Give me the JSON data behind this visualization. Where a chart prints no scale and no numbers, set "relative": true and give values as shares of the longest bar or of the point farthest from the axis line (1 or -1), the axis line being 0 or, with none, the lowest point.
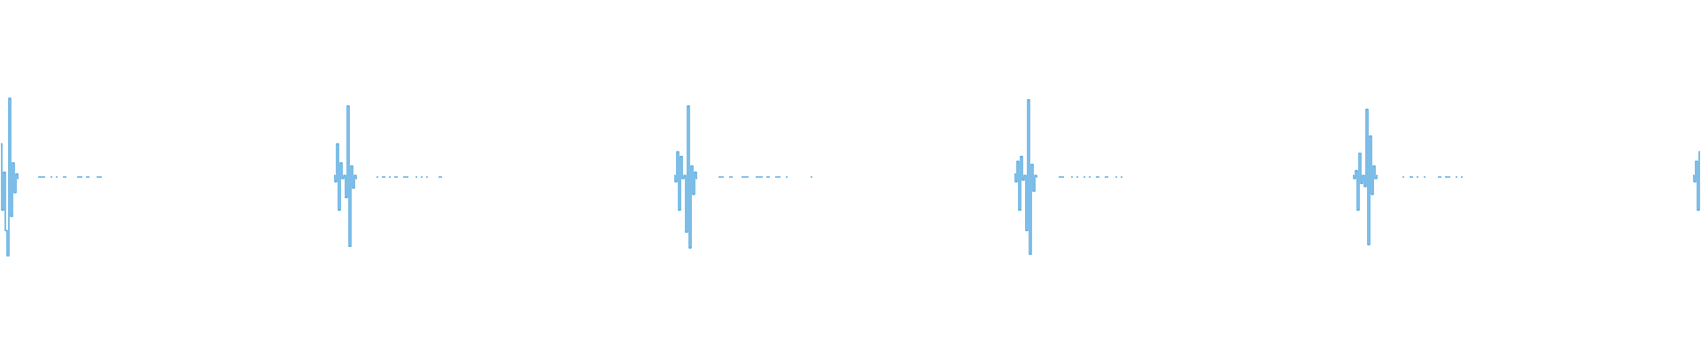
{
  "chart_data": {
    "type": "step",
    "relative": true,
    "color": "#5dade2",
    "categories": [
      null,
      null,
      null,
      null,
      null,
      null,
      null,
      null,
      null,
      null,
      null,
      null,
      null,
      null,
      null,
      null,
      null,
      null,
      null,
      null,
      null,
      null,
      null,
      null,
      null,
      null,
      null,
      null,
      null,
      null,
      null,
      null,
      null,
      null,
      null,
      null,
      null,
      null,
      null,
      null,
      null,
      null,
      null,
      null,
      null,
      null,
      null,
      null,
      null,
      null,
      null,
      null,
      null,
      null,
      null,
      null,
      null,
      null,
      null,
      null,
      null,
      null,
      null,
      null,
      null,
      null,
      null,
      null,
      null,
      null,
      null,
      null,
      null,
      null,
      null,
      null,
      null,
      null,
      null,
      null,
      null,
      null,
      null,
      null,
      null,
      null,
      null,
      null,
      null,
      null,
      null,
      null,
      null,
      null,
      null,
      null,
      null,
      null,
      null,
      null,
      null,
      null,
      null,
      null,
      null,
      null,
      null,
      null,
      null,
      null,
      null,
      null,
      null,
      null,
      null,
      null,
      null,
      null,
      null,
      null,
      null,
      null,
      null,
      null,
      null,
      null,
      null,
      null,
      null,
      null,
      null,
      null,
      null,
      null,
      null,
      null,
      null,
      null,
      null,
      null,
      null,
      null,
      null,
      null,
      null,
      null,
      null,
      null,
      null,
      null,
      null,
      null,
      null,
      null,
      null,
      null,
      null,
      null,
      null,
      null,
      null,
      null,
      null,
      null,
      null,
      null,
      null,
      null,
      null,
      null,
      null,
      null,
      null,
      null,
      null,
      null,
      null,
      null,
      null,
      null,
      null,
      null,
      null,
      null,
      null,
      null,
      null,
      null,
      null,
      null,
      null,
      null,
      null,
      null,
      null,
      null,
      null,
      null,
      null,
      null,
      null,
      null,
      null,
      null,
      null,
      null,
      null,
      null,
      null,
      null,
      null,
      null,
      null,
      null,
      null,
      null,
      null,
      null,
      null,
      null,
      null,
      null,
      null,
      null,
      null,
      null,
      null,
      null,
      null,
      null,
      null,
      null,
      null,
      null,
      null,
      null,
      null,
      null,
      null,
      null,
      null,
      null,
      null,
      null,
      null,
      null,
      null,
      null,
      null,
      null,
      null,
      null,
      null,
      null,
      null,
      null,
      null,
      null,
      null,
      null,
      null,
      null,
      null,
      null,
      null,
      null,
      null,
      null,
      null,
      null,
      null,
      null,
      null,
      null,
      null,
      null,
      null,
      null,
      null,
      null,
      null,
      null,
      null,
      null,
      null,
      null,
      null,
      null,
      null,
      null,
      null,
      null,
      null,
      null,
      null,
      null,
      null,
      null,
      null,
      null,
      null,
      null,
      null,
      null,
      null,
      null,
      null,
      null,
      null,
      null,
      null,
      null,
      null,
      null,
      null,
      null,
      null,
      null,
      null,
      null,
      null,
      null,
      null,
      null,
      null,
      null,
      null,
      null,
      null,
      null,
      null,
      null,
      null,
      null,
      null,
      null,
      null,
      null,
      null,
      null,
      null,
      null,
      null,
      null,
      null,
      null,
      null,
      null,
      null,
      null,
      null,
      null,
      null,
      null,
      null,
      null,
      null,
      null,
      null,
      null,
      null,
      null,
      null,
      null,
      null,
      null,
      null,
      null,
      null,
      null,
      null,
      null,
      null,
      null,
      null,
      null,
      null,
      null,
      null,
      null,
      null,
      null,
      null,
      null,
      null,
      null,
      null,
      null,
      null,
      null,
      null,
      null,
      null,
      null,
      null,
      null,
      null,
      null,
      null,
      null,
      null,
      null,
      null,
      null,
      null,
      null,
      null,
      null,
      null,
      null,
      null,
      null,
      null,
      null,
      null,
      null,
      null,
      null,
      null,
      null,
      null,
      null,
      null,
      null,
      null,
      null,
      null,
      null,
      null,
      null,
      null,
      null,
      null,
      null,
      null,
      null,
      null,
      null,
      null,
      null,
      null,
      null,
      null,
      null,
      null,
      null,
      null,
      null,
      null,
      null,
      null,
      null,
      null,
      null,
      null,
      null,
      null,
      null,
      null,
      null,
      null,
      null,
      null,
      null,
      null,
      null,
      null,
      null,
      null,
      null,
      null,
      null,
      null,
      null,
      null,
      null,
      null,
      null,
      null,
      null,
      null,
      null,
      null,
      null,
      null,
      null,
      null,
      null,
      null,
      null,
      null,
      null,
      null,
      null,
      null,
      null,
      null,
      null,
      null,
      null,
      null,
      null,
      null,
      null,
      null,
      null,
      null,
      null,
      null,
      null,
      null,
      null,
      null,
      null,
      null,
      null,
      null,
      null,
      null,
      null,
      null,
      null,
      null,
      null,
      null,
      null,
      null,
      null,
      null,
      null,
      null,
      null,
      null,
      null,
      null,
      null,
      null,
      null,
      null,
      null,
      null,
      null,
      null,
      null,
      null,
      null,
      null,
      null,
      null,
      null,
      null,
      null,
      null,
      null,
      null,
      null,
      null,
      null,
      null,
      null,
      null,
      null,
      null,
      null,
      null,
      null,
      null,
      null,
      null,
      null,
      null,
      null,
      null,
      null,
      null,
      null,
      null,
      null,
      null,
      null,
      null,
      null,
      null,
      null,
      null,
      null,
      null,
      null,
      null,
      null,
      null,
      null,
      null,
      null,
      null,
      null,
      null,
      null,
      null,
      null,
      null,
      null,
      null,
      null,
      null,
      null,
      null,
      null,
      null,
      null,
      null,
      null,
      null,
      null,
      null,
      null,
      null,
      null,
      null,
      null,
      null,
      null,
      null,
      null,
      null,
      null,
      null,
      null,
      null,
      null,
      null,
      null,
      null,
      null,
      null,
      null,
      null,
      null,
      null,
      null,
      null,
      null,
      null,
      null,
      null,
      null,
      null,
      null,
      null,
      null,
      null,
      null,
      null,
      null,
      null,
      null,
      null,
      null,
      null,
      null,
      null,
      null,
      null,
      null,
      null,
      null,
      null,
      null,
      null,
      null,
      null,
      null,
      null,
      null,
      null,
      null,
      null,
      null,
      null,
      null,
      null,
      null,
      null,
      null,
      null,
      null,
      null,
      null,
      null,
      null,
      null,
      null,
      null,
      null,
      null,
      null,
      null,
      null,
      null,
      null,
      null,
      null,
      null,
      null,
      null,
      null,
      null,
      null,
      null,
      null,
      null,
      null,
      null,
      null,
      null,
      null,
      null,
      null,
      null,
      null,
      null,
      null,
      null,
      null,
      null,
      null,
      null,
      null,
      null,
      null,
      null,
      null,
      null,
      null,
      null,
      null,
      null,
      null,
      null,
      null,
      null,
      null,
      null,
      null,
      null,
      null,
      null,
      null,
      null,
      null,
      null,
      null,
      null,
      null,
      null,
      null,
      null,
      null,
      null,
      null,
      null,
      null,
      null,
      null,
      null,
      null,
      null,
      null,
      null,
      null,
      null,
      null,
      null,
      null,
      null,
      null,
      null,
      null,
      null,
      null,
      null,
      null,
      null,
      null,
      null,
      null,
      null,
      null,
      null,
      null,
      null,
      null,
      null,
      null,
      null,
      null,
      null,
      null,
      null,
      null,
      null,
      null,
      null,
      null,
      null,
      null,
      null,
      null,
      null,
      null,
      null,
      null,
      null,
      null,
      null,
      null,
      null,
      null,
      null,
      null,
      null,
      null,
      null,
      null,
      null,
      null,
      null,
      null,
      null,
      null,
      null,
      null,
      null,
      null,
      null,
      null,
      null,
      null,
      null,
      null,
      null,
      null,
      null,
      null,
      null,
      null,
      null,
      null,
      null,
      null,
      null,
      null,
      null,
      null,
      null,
      null,
      null,
      null,
      null,
      null,
      null,
      null,
      null,
      null,
      null,
      null,
      null,
      null,
      null,
      null,
      null,
      null,
      null,
      null,
      null,
      null,
      null,
      null,
      null,
      null,
      null,
      null,
      null,
      null,
      null,
      null,
      null,
      null,
      null,
      null,
      null,
      null,
      null,
      null,
      null,
      null,
      null,
      null,
      null,
      null,
      null,
      null,
      null,
      null,
      null,
      null,
      null,
      null,
      null,
      null,
      null,
      null,
      null,
      null,
      null,
      null,
      null,
      null,
      null,
      null,
      null,
      null,
      null,
      null,
      null,
      null,
      null,
      null,
      null,
      null,
      null,
      null,
      null,
      null,
      null,
      null,
      null,
      null,
      null,
      null,
      null,
      null,
      null,
      null,
      null,
      null,
      null,
      null,
      null,
      null,
      null,
      null,
      null,
      null,
      null,
      null,
      null,
      null,
      null,
      null
    ],
    "values": [
      0.71,
      0.29,
      0.53,
      0.16,
      0,
      1,
      0.25,
      0.59,
      0.4,
      0.52,
      0.49,
      null,
      null,
      null,
      null,
      null,
      null,
      null,
      null,
      null,
      null,
      0.5,
      0.5,
      0.5,
      0.5,
      0.5,
      null,
      null,
      0.5,
      0.5,
      null,
      0.5,
      0.5,
      null,
      null,
      0.5,
      0.5,
      0.5,
      null,
      null,
      null,
      null,
      null,
      0.5,
      0.5,
      0.5,
      0.5,
      null,
      0.5,
      0.5,
      0.5,
      null,
      null,
      null,
      0.5,
      0.5,
      0.5,
      0.5,
      null,
      null,
      null,
      null,
      null,
      null,
      null,
      null,
      null,
      null,
      null,
      null,
      null,
      null,
      null,
      null,
      null,
      null,
      null,
      null,
      null,
      null,
      null,
      null,
      null,
      null,
      null,
      null,
      null,
      null,
      null,
      null,
      null,
      null,
      null,
      null,
      null,
      null,
      null,
      null,
      null,
      null,
      null,
      null,
      null,
      null,
      null,
      null,
      null,
      null,
      null,
      null,
      null,
      null,
      null,
      null,
      null,
      null,
      null,
      null,
      null,
      null,
      null,
      null,
      null,
      null,
      null,
      null,
      null,
      null,
      null,
      null,
      null,
      null,
      null,
      null,
      null,
      null,
      null,
      null,
      null,
      null,
      null,
      null,
      null,
      null,
      null,
      null,
      null,
      null,
      null,
      null,
      null,
      null,
      null,
      null,
      null,
      null,
      null,
      null,
      null,
      null,
      null,
      null,
      null,
      null,
      null,
      null,
      null,
      null,
      null,
      null,
      null,
      null,
      null,
      null,
      null,
      null,
      null,
      null,
      null,
      null,
      null,
      null,
      null,
      null,
      null,
      null,
      null,
      null,
      0.51,
      0.47,
      0.71,
      0.29,
      0.59,
      0.49,
      0.51,
      0.37,
      0.95,
      0.06,
      0.57,
      0.43,
      0.51,
      0.49,
      null,
      null,
      null,
      null,
      null,
      null,
      null,
      null,
      null,
      null,
      0.5,
      0.5,
      null,
      0.5,
      0.5,
      0.5,
      null,
      0.5,
      0.5,
      null,
      0.5,
      0.5,
      0.5,
      null,
      null,
      0.5,
      0.5,
      0.5,
      0.5,
      null,
      null,
      null,
      0.5,
      0.5,
      null,
      0.5,
      0.5,
      null,
      0.5,
      0.5,
      null,
      null,
      null,
      null,
      null,
      0.5,
      0.5,
      0.5,
      null,
      null,
      null,
      null,
      null,
      null,
      null,
      null,
      null,
      null,
      null,
      null,
      null,
      null,
      null,
      null,
      null,
      null,
      null,
      null,
      null,
      null,
      null,
      null,
      null,
      null,
      null,
      null,
      null,
      null,
      null,
      null,
      null,
      null,
      null,
      null,
      null,
      null,
      null,
      null,
      null,
      null,
      null,
      null,
      null,
      null,
      null,
      null,
      null,
      null,
      null,
      null,
      null,
      null,
      null,
      null,
      null,
      null,
      null,
      null,
      null,
      null,
      null,
      null,
      null,
      null,
      null,
      null,
      null,
      null,
      null,
      null,
      null,
      null,
      null,
      null,
      null,
      null,
      null,
      null,
      null,
      null,
      null,
      null,
      null,
      null,
      null,
      null,
      null,
      null,
      null,
      null,
      null,
      null,
      null,
      null,
      null,
      null,
      null,
      null,
      null,
      null,
      null,
      null,
      null,
      null,
      null,
      null,
      null,
      null,
      null,
      null,
      null,
      null,
      null,
      null,
      null,
      null,
      null,
      null,
      null,
      null,
      null,
      null,
      null,
      null,
      null,
      null,
      null,
      null,
      0.51,
      0.47,
      0.66,
      0.29,
      0.63,
      0.49,
      0.51,
      0.15,
      0.95,
      0.05,
      0.57,
      0.39,
      0.53,
      0.49,
      null,
      null,
      null,
      null,
      null,
      null,
      null,
      null,
      null,
      null,
      null,
      0.5,
      0.5,
      0.5,
      0.5,
      null,
      null,
      0.5,
      0.5,
      0.5,
      null,
      null,
      null,
      null,
      0.5,
      0.5,
      0.5,
      0.5,
      0.5,
      null,
      null,
      null,
      0.5,
      0.5,
      0.5,
      0.5,
      0.5,
      null,
      0.5,
      0.5,
      0.5,
      null,
      null,
      0.5,
      0.5,
      0.5,
      0.5,
      null,
      null,
      0.5,
      0.5,
      null,
      null,
      null,
      null,
      null,
      null,
      null,
      null,
      null,
      null,
      null,
      null,
      0.5,
      0.5,
      null,
      null,
      null,
      null,
      null,
      null,
      null,
      null,
      null,
      null,
      null,
      null,
      null,
      null,
      null,
      null,
      null,
      null,
      null,
      null,
      null,
      null,
      null,
      null,
      null,
      null,
      null,
      null,
      null,
      null,
      null,
      null,
      null,
      null,
      null,
      null,
      null,
      null,
      null,
      null,
      null,
      null,
      null,
      null,
      null,
      null,
      null,
      null,
      null,
      null,
      null,
      null,
      null,
      null,
      null,
      null,
      null,
      null,
      null,
      null,
      null,
      null,
      null,
      null,
      null,
      null,
      null,
      null,
      null,
      null,
      null,
      null,
      null,
      null,
      null,
      null,
      null,
      null,
      null,
      null,
      null,
      null,
      null,
      null,
      null,
      null,
      null,
      null,
      null,
      null,
      null,
      null,
      null,
      null,
      null,
      null,
      null,
      null,
      null,
      null,
      null,
      null,
      null,
      null,
      null,
      null,
      null,
      null,
      null,
      null,
      null,
      null,
      null,
      0.52,
      0.47,
      0.6,
      0.29,
      0.63,
      0.48,
      0.51,
      0.16,
      0.99,
      0.01,
      0.58,
      0.41,
      0.51,
      0.5,
      null,
      null,
      null,
      null,
      null,
      null,
      null,
      null,
      null,
      null,
      null,
      0.5,
      0.5,
      0.5,
      0.5,
      null,
      null,
      null,
      0.5,
      0.5,
      null,
      0.5,
      0.5,
      null,
      null,
      0.5,
      0.5,
      null,
      0.5,
      0.5,
      null,
      null,
      0.5,
      0.5,
      0.5,
      null,
      null,
      0.5,
      0.5,
      0.5,
      null,
      null,
      null,
      0.5,
      0.5,
      null,
      0.5,
      0.5,
      null,
      null,
      null,
      null,
      null,
      null,
      null,
      null,
      null,
      null,
      null,
      null,
      null,
      null,
      null,
      null,
      null,
      null,
      null,
      null,
      null,
      null,
      null,
      null,
      null,
      null,
      null,
      null,
      null,
      null,
      null,
      null,
      null,
      null,
      null,
      null,
      null,
      null,
      null,
      null,
      null,
      null,
      null,
      null,
      null,
      null,
      null,
      null,
      null,
      null,
      null,
      null,
      null,
      null,
      null,
      null,
      null,
      null,
      null,
      null,
      null,
      null,
      null,
      null,
      null,
      null,
      null,
      null,
      null,
      null,
      null,
      null,
      null,
      null,
      null,
      null,
      null,
      null,
      null,
      null,
      null,
      null,
      null,
      null,
      null,
      null,
      null,
      null,
      null,
      null,
      null,
      null,
      null,
      null,
      null,
      null,
      null,
      null,
      null,
      null,
      null,
      null,
      null,
      null,
      null,
      null,
      null,
      null,
      null,
      null,
      null,
      null,
      null,
      null,
      null,
      null,
      null,
      null,
      null,
      null,
      null,
      null,
      null,
      null,
      null,
      null,
      null,
      null,
      null,
      0.51,
      0.49,
      0.54,
      0.29,
      0.65,
      0.46,
      0.51,
      0.44,
      0.93,
      0.07,
      0.76,
      0.39,
      0.57,
      0.49,
      0.51,
      null,
      null,
      null,
      null,
      null,
      null,
      null,
      null,
      null,
      null,
      null,
      null,
      null,
      0.5,
      0.5,
      null,
      null,
      0.5,
      0.5,
      0.5,
      null,
      0.5,
      0.5,
      null,
      null,
      0.5,
      0.5,
      null,
      null,
      null,
      null,
      null,
      null,
      0.5,
      0.5,
      0.5,
      null,
      0.5,
      0.5,
      0.5,
      0.5,
      null,
      null,
      0.5,
      0.5,
      null,
      0.5,
      0.5,
      null,
      null,
      null,
      null,
      null,
      null,
      null,
      null,
      null,
      null,
      null,
      null,
      null,
      null,
      null,
      null,
      null,
      null,
      null,
      null,
      null,
      null,
      null,
      null,
      null,
      null,
      null,
      null,
      null,
      null,
      null,
      null,
      null,
      null,
      null,
      null,
      null,
      null,
      null,
      null,
      null,
      null,
      null,
      null,
      null,
      null,
      null,
      null,
      null,
      null,
      null,
      null,
      null,
      null,
      null,
      null,
      null,
      null,
      null,
      null,
      null,
      null,
      null,
      null,
      null,
      null,
      null,
      null,
      null,
      null,
      null,
      null,
      null,
      null,
      null,
      null,
      null,
      null,
      null,
      null,
      null,
      null,
      null,
      null,
      null,
      null,
      null,
      null,
      null,
      null,
      null,
      null,
      null,
      null,
      null,
      null,
      null,
      null,
      null,
      null,
      null,
      null,
      null,
      null,
      null,
      null,
      null,
      null,
      null,
      null,
      null,
      null,
      null,
      null,
      null,
      null,
      null,
      null,
      null,
      null,
      null,
      null,
      null,
      null,
      null,
      null,
      null,
      null,
      null,
      0.51,
      0.47,
      0.6,
      0.29,
      0.66
    ]
  }
}
